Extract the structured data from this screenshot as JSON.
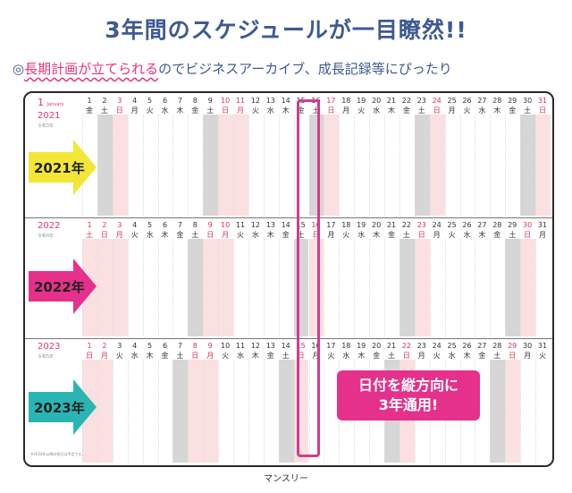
{
  "headline": "3年間のスケジュールが一目瞭然!!",
  "subline": {
    "mark": "◎",
    "highlight": "長期計画が立てられる",
    "rest": "のでビジネスアーカイブ、成長記録等にぴったり"
  },
  "month_label": "1",
  "month_sub": "January",
  "years": [
    {
      "year": "2021",
      "era": "令和3年",
      "arrow_label": "2021年",
      "arrow_color": "#f2e736",
      "days": [
        "金",
        "土",
        "日",
        "月",
        "火",
        "水",
        "木",
        "金",
        "土",
        "日",
        "月",
        "火",
        "水",
        "木",
        "金",
        "土",
        "日",
        "月",
        "火",
        "水",
        "木",
        "金",
        "土",
        "日",
        "月",
        "火",
        "水",
        "木",
        "金",
        "土",
        "日"
      ],
      "red": [
        3,
        10,
        11,
        17,
        24,
        31
      ],
      "gray": [
        2,
        9,
        16,
        23,
        30
      ]
    },
    {
      "year": "2022",
      "era": "令和4年",
      "arrow_label": "2022年",
      "arrow_color": "#e5318b",
      "days": [
        "土",
        "日",
        "月",
        "火",
        "水",
        "木",
        "金",
        "土",
        "日",
        "月",
        "火",
        "水",
        "木",
        "金",
        "土",
        "日",
        "月",
        "火",
        "水",
        "木",
        "金",
        "土",
        "日",
        "月",
        "火",
        "水",
        "木",
        "金",
        "土",
        "日",
        "月"
      ],
      "red": [
        1,
        2,
        3,
        9,
        10,
        16,
        23,
        30
      ],
      "gray": [
        8,
        15,
        22,
        29
      ]
    },
    {
      "year": "2023",
      "era": "令和5年",
      "arrow_label": "2023年",
      "arrow_color": "#2ab5b5",
      "days": [
        "日",
        "月",
        "火",
        "水",
        "木",
        "金",
        "土",
        "日",
        "月",
        "火",
        "水",
        "木",
        "金",
        "土",
        "日",
        "月",
        "火",
        "水",
        "木",
        "金",
        "土",
        "日",
        "月",
        "火",
        "水",
        "木",
        "金",
        "土",
        "日",
        "月",
        "火"
      ],
      "red": [
        1,
        2,
        8,
        9,
        15,
        22,
        29
      ],
      "gray": [
        7,
        14,
        21,
        28
      ]
    }
  ],
  "callout": {
    "line1": "日付を縦方向に",
    "line2": "3年通用!"
  },
  "footnote": "※2024年以降の祝日は予定です。",
  "caption": "マンスリー"
}
